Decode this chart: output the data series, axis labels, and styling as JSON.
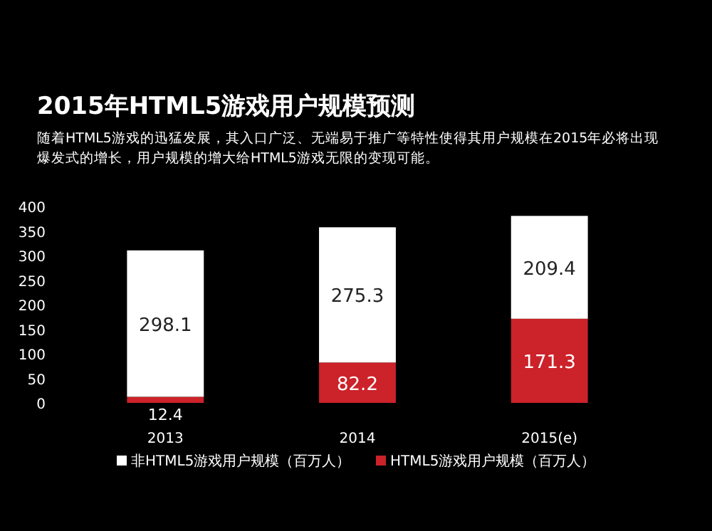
{
  "chart_data": {
    "type": "bar",
    "title": "2015年HTML5游戏用户规模预测",
    "subtitle": "随着HTML5游戏的迅猛发展，其入口广泛、无端易于推广等特性使得其用户规模在2015年必将出现爆发式的增长，用户规模的增大给HTML5游戏无限的变现可能。",
    "categories": [
      "2013",
      "2014",
      "2015(e)"
    ],
    "stacked": true,
    "series": [
      {
        "name": "HTML5游戏用户规模（百万人）",
        "color": "#cc2229",
        "values": [
          12.4,
          82.2,
          171.3
        ]
      },
      {
        "name": "非HTML5游戏用户规模（百万人）",
        "color": "#ffffff",
        "values": [
          298.1,
          275.3,
          209.4
        ]
      }
    ],
    "ylim": [
      0,
      400
    ],
    "yticks": [
      0,
      50,
      100,
      150,
      200,
      250,
      300,
      350,
      400
    ],
    "data_labels": true,
    "legend": "bottom",
    "grid": false
  }
}
